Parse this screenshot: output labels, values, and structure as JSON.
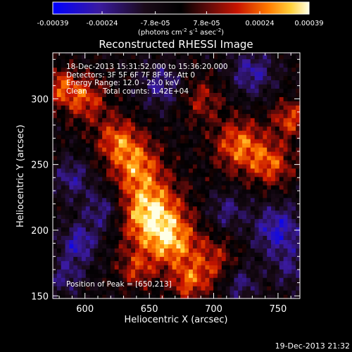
{
  "chart_data": {
    "type": "heatmap",
    "title": "Reconstructed RHESSI Image",
    "xlabel": "Heliocentric X (arcsec)",
    "ylabel": "Heliocentric Y (arcsec)",
    "xlim": [
      575,
      767
    ],
    "ylim": [
      148,
      335
    ],
    "x_ticks": [
      600,
      650,
      700,
      750
    ],
    "y_ticks": [
      150,
      200,
      250,
      300
    ],
    "colorbar": {
      "min": -0.00039,
      "max": 0.00039,
      "tick_values": [
        -0.00039,
        -0.00024,
        -7.8e-05,
        7.8e-05,
        0.00024,
        0.00039
      ],
      "tick_labels": [
        "-0.00039",
        "-0.00024",
        "-7.8e-05",
        "7.8e-05",
        "0.00024",
        "0.00039"
      ],
      "unit_main": "(photons cm",
      "unit_exp1": "-2",
      "unit_mid": " s",
      "unit_exp2": "-1",
      "unit_end": " asec",
      "unit_exp3": "-2",
      "unit_close": ")",
      "colors": [
        "#0000ff",
        "#3a1aa0",
        "#1a0a18",
        "#000000",
        "#5a0a0a",
        "#c81400",
        "#ff7a00",
        "#ffd23c",
        "#ffffe6"
      ]
    },
    "annotations": {
      "time_range": "18-Dec-2013 15:31:52.000 to 15:36:20.000",
      "detectors": "Detectors: 3F 5F 6F 7F 8F 9F, Att 0",
      "energy": "Energy Range: 12.0 - 25.0 keV",
      "clean": "Clean",
      "counts": "Total counts: 1.42E+04",
      "peak": "Position of Peak = [650,213]"
    },
    "peak_position": [
      650,
      213
    ],
    "total_counts": 14200,
    "grid": false
  },
  "footer": {
    "timestamp": "19-Dec-2013 21:32"
  }
}
